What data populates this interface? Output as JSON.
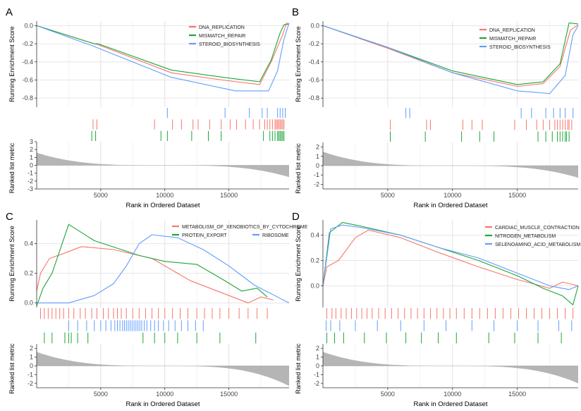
{
  "chart_data": [
    {
      "type": "line",
      "panel_label": "A",
      "ylabel": "Running Enrichment Score",
      "metric_label": "Ranked list metric",
      "xlabel": "Rank in Ordered Dataset",
      "x_ticks": [
        5000,
        10000,
        15000
      ],
      "x_tick_labels": [
        "5000",
        "10000",
        "15000"
      ],
      "xlim": [
        0,
        19700
      ],
      "ylim": [
        -0.9,
        0.05
      ],
      "y_ticks": [
        0.0,
        -0.2,
        -0.4,
        -0.6,
        -0.8
      ],
      "y_tick_labels": [
        "0.0",
        "-0.2",
        "-0.4",
        "-0.6",
        "-0.8"
      ],
      "metric_ylim": [
        -3,
        3
      ],
      "metric_ticks": [
        3,
        2,
        1,
        0,
        -1,
        -2,
        -3
      ],
      "metric_tick_labels": [
        "3",
        "2",
        "1",
        "0",
        "-1",
        "-2",
        "-3"
      ],
      "metric_start": 1.6,
      "metric_end": -1.5,
      "legend_position": "top-right",
      "series": [
        {
          "name": "DNA_REPLICATION",
          "color": "#f8766d",
          "x": [
            0,
            4500,
            4800,
            10500,
            14500,
            17400,
            18300,
            19200,
            19500,
            19700
          ],
          "y": [
            0,
            -0.2,
            -0.21,
            -0.52,
            -0.6,
            -0.65,
            -0.4,
            -0.1,
            0.03,
            0.01
          ],
          "hits": [
            4400,
            4700,
            9200,
            10600,
            11300,
            12200,
            12600,
            13500,
            14400,
            15100,
            15600,
            16300,
            16900,
            17400,
            17800,
            18000,
            18200,
            18400,
            18600,
            18700,
            18800,
            18900,
            19000,
            19100,
            19200,
            19300
          ]
        },
        {
          "name": "MISMATCH_REPAIR",
          "color": "#1ca638",
          "x": [
            0,
            4500,
            4800,
            10500,
            14500,
            17400,
            18300,
            19000,
            19300,
            19700
          ],
          "y": [
            0,
            -0.2,
            -0.2,
            -0.49,
            -0.57,
            -0.62,
            -0.38,
            -0.08,
            0.01,
            0.02
          ],
          "hits": [
            4300,
            4600,
            9700,
            10200,
            12100,
            13400,
            14400,
            17700,
            18200,
            18400,
            18600,
            18800,
            18900,
            19000,
            19100,
            19200,
            19300
          ]
        },
        {
          "name": "STEROID_BIOSYNTHESIS",
          "color": "#619cff",
          "x": [
            0,
            4500,
            5200,
            10500,
            15500,
            18100,
            18800,
            19300,
            19700
          ],
          "y": [
            0,
            -0.23,
            -0.27,
            -0.57,
            -0.72,
            -0.72,
            -0.5,
            -0.15,
            0.03
          ],
          "hits": [
            10200,
            14700,
            16600,
            17600,
            18000,
            18800,
            19000,
            19200,
            19400
          ]
        }
      ]
    },
    {
      "type": "line",
      "panel_label": "B",
      "ylabel": "Running Enrichment Score",
      "metric_label": "Ranked list metric",
      "xlabel": "Rank in Ordered Dataset",
      "x_ticks": [
        5000,
        10000,
        15000
      ],
      "x_tick_labels": [
        "5000",
        "10000",
        "15000"
      ],
      "xlim": [
        0,
        19700
      ],
      "ylim": [
        -0.9,
        0.05
      ],
      "y_ticks": [
        0.0,
        -0.2,
        -0.4,
        -0.6,
        -0.8
      ],
      "y_tick_labels": [
        "0.0",
        "-0.2",
        "-0.4",
        "-0.6",
        "-0.8"
      ],
      "metric_ylim": [
        -2.5,
        2.5
      ],
      "metric_ticks": [
        2,
        1,
        0,
        -1,
        -2
      ],
      "metric_tick_labels": [
        "2",
        "1",
        "0",
        "-1",
        "-2"
      ],
      "metric_start": 1.5,
      "metric_end": -1.3,
      "legend_position": "top-right",
      "series": [
        {
          "name": "DNA_REPLICATION",
          "color": "#f8766d",
          "x": [
            0,
            5000,
            10000,
            15000,
            17000,
            18300,
            19100,
            19700
          ],
          "y": [
            0,
            -0.25,
            -0.52,
            -0.67,
            -0.64,
            -0.45,
            -0.05,
            0.01
          ],
          "hits": [
            5200,
            8000,
            8300,
            10800,
            11500,
            12300,
            14800,
            15700,
            16500,
            17000,
            17500,
            17900,
            18100,
            18300,
            18500,
            18700,
            18900,
            19000,
            19200
          ]
        },
        {
          "name": "MISMATCH_REPAIR",
          "color": "#1ca638",
          "x": [
            0,
            5000,
            10000,
            15000,
            17000,
            18300,
            19000,
            19700
          ],
          "y": [
            0,
            -0.24,
            -0.5,
            -0.65,
            -0.62,
            -0.42,
            0.03,
            0.02
          ],
          "hits": [
            5200,
            7900,
            10700,
            12100,
            13200,
            16600,
            17200,
            17700,
            18100,
            18300,
            18500,
            18700,
            18800,
            19000
          ]
        },
        {
          "name": "STEROID_BIOSYNTHESIS",
          "color": "#619cff",
          "x": [
            0,
            5000,
            10000,
            15000,
            17500,
            18700,
            19300,
            19700
          ],
          "y": [
            0,
            -0.24,
            -0.52,
            -0.72,
            -0.75,
            -0.55,
            -0.1,
            0.0
          ],
          "hits": [
            6400,
            6700,
            15300,
            16100,
            17200,
            17800,
            18300,
            18700,
            19300
          ]
        }
      ]
    },
    {
      "type": "line",
      "panel_label": "C",
      "ylabel": "Running Enrichment Score",
      "metric_label": "Ranked list metric",
      "xlabel": "Rank in Ordered Dataset",
      "x_ticks": [
        5000,
        10000,
        15000
      ],
      "x_tick_labels": [
        "5000",
        "10000",
        "15000"
      ],
      "xlim": [
        0,
        19700
      ],
      "ylim": [
        -0.03,
        0.56
      ],
      "y_ticks": [
        0.0,
        0.2,
        0.4
      ],
      "y_tick_labels": [
        "0.0",
        "0.2",
        "0.4"
      ],
      "metric_ylim": [
        -2.5,
        2.5
      ],
      "metric_ticks": [
        2,
        1,
        0,
        -1,
        -2
      ],
      "metric_tick_labels": [
        "2",
        "1",
        "0",
        "-1",
        "-2"
      ],
      "metric_start": 1.6,
      "metric_end": -2.3,
      "legend_position": "top-right",
      "series": [
        {
          "name": "METABOLISM_OF_XENOBIOTICS_BY_CYTOCHROME",
          "color": "#f8766d",
          "x": [
            0,
            300,
            1000,
            2000,
            3500,
            6000,
            9000,
            12000,
            15000,
            16500,
            17500,
            18500
          ],
          "y": [
            0.08,
            0.2,
            0.3,
            0.33,
            0.38,
            0.36,
            0.3,
            0.15,
            0.05,
            0.0,
            0.04,
            0.02
          ],
          "hits": [
            300,
            600,
            900,
            1200,
            1500,
            1800,
            2100,
            2500,
            2900,
            3400,
            3800,
            4300,
            4700,
            5200,
            5600,
            6000,
            6300,
            6600,
            7000,
            7500,
            8000,
            8500,
            9000,
            9500,
            10000,
            10600,
            11200,
            11800,
            12500,
            13100,
            13700,
            14300,
            15000,
            15800,
            16500,
            17200,
            18000
          ]
        },
        {
          "name": "PROTEIN_EXPORT",
          "color": "#1ca638",
          "x": [
            0,
            500,
            1200,
            2500,
            4500,
            8000,
            10000,
            12500,
            14500,
            16000,
            17200,
            18000
          ],
          "y": [
            -0.02,
            0.1,
            0.2,
            0.53,
            0.42,
            0.32,
            0.28,
            0.26,
            0.16,
            0.08,
            0.1,
            0.04
          ],
          "hits": [
            600,
            1200,
            2200,
            2500,
            2700,
            3200,
            4000,
            8300,
            9200,
            10000,
            11000,
            12500,
            14300,
            17100
          ]
        },
        {
          "name": "RIBOSOME",
          "color": "#619cff",
          "x": [
            0,
            2500,
            4500,
            6000,
            7000,
            8000,
            9000,
            11000,
            13000,
            15000,
            17000,
            19700
          ],
          "y": [
            0.0,
            0.0,
            0.05,
            0.13,
            0.25,
            0.4,
            0.46,
            0.44,
            0.36,
            0.25,
            0.12,
            0.0
          ],
          "hits": [
            2500,
            3200,
            3900,
            4500,
            5000,
            5400,
            5800,
            6100,
            6300,
            6500,
            6700,
            6850,
            7000,
            7150,
            7300,
            7450,
            7600,
            7750,
            7900,
            8050,
            8200,
            8400,
            8600,
            8900,
            9200,
            9500,
            9900,
            10300,
            10800,
            11300,
            11800,
            12400,
            13000
          ]
        }
      ]
    },
    {
      "type": "line",
      "panel_label": "D",
      "ylabel": "Running Enrichment Score",
      "metric_label": "Ranked list metric",
      "xlabel": "Rank in Ordered Dataset",
      "x_ticks": [
        5000,
        10000,
        15000
      ],
      "x_tick_labels": [
        "5000",
        "10000",
        "15000"
      ],
      "xlim": [
        0,
        19700
      ],
      "ylim": [
        -0.17,
        0.52
      ],
      "y_ticks": [
        0.0,
        0.2,
        0.4
      ],
      "y_tick_labels": [
        "0.0",
        "0.2",
        "0.4"
      ],
      "metric_ylim": [
        -2.5,
        2.5
      ],
      "metric_ticks": [
        2,
        1,
        0,
        -1,
        -2
      ],
      "metric_tick_labels": [
        "2",
        "1",
        "0",
        "-1",
        "-2"
      ],
      "metric_start": 1.6,
      "metric_end": -2.0,
      "legend_position": "top-right",
      "series": [
        {
          "name": "CARDIAC_MUSCLE_CONTRACTION",
          "color": "#f8766d",
          "x": [
            0,
            300,
            1200,
            2500,
            3500,
            6000,
            9000,
            12000,
            15000,
            17500,
            18500,
            19700
          ],
          "y": [
            0.0,
            0.15,
            0.2,
            0.38,
            0.44,
            0.38,
            0.26,
            0.15,
            0.05,
            -0.02,
            0.03,
            0.0
          ],
          "hits": [
            300,
            700,
            1000,
            1400,
            1800,
            2200,
            2600,
            3000,
            3400,
            3800,
            4300,
            4800,
            5300,
            5800,
            6300,
            6800,
            7300,
            7800,
            8300,
            8800,
            9300,
            9800,
            10300,
            10900,
            11500,
            12100,
            12700,
            13300,
            13900,
            14500,
            15100,
            15700,
            16300,
            16900,
            17500,
            18100,
            18700,
            19300
          ]
        },
        {
          "name": "NITROGEN_METABOLISM",
          "color": "#1ca638",
          "x": [
            0,
            500,
            1500,
            3000,
            6000,
            9000,
            12000,
            15000,
            17000,
            18500,
            19300,
            19700
          ],
          "y": [
            0.0,
            0.42,
            0.5,
            0.47,
            0.4,
            0.3,
            0.2,
            0.08,
            -0.02,
            -0.08,
            -0.15,
            0.0
          ],
          "hits": [
            300,
            900,
            1600,
            3200,
            4900,
            6400,
            7600,
            8900,
            10300,
            12800,
            14800,
            16600,
            18400
          ]
        },
        {
          "name": "SELENOAMINO_ACID_METABOLISM",
          "color": "#619cff",
          "x": [
            0,
            600,
            1500,
            3000,
            6000,
            9000,
            12000,
            15000,
            17500,
            19000,
            19700
          ],
          "y": [
            0.0,
            0.45,
            0.48,
            0.46,
            0.4,
            0.3,
            0.22,
            0.1,
            0.0,
            -0.03,
            0.0
          ],
          "hits": [
            250,
            600,
            1300,
            2500,
            4200,
            6000,
            7800,
            9500,
            11500,
            13200,
            15000,
            16600,
            18200,
            19200
          ]
        }
      ]
    }
  ]
}
